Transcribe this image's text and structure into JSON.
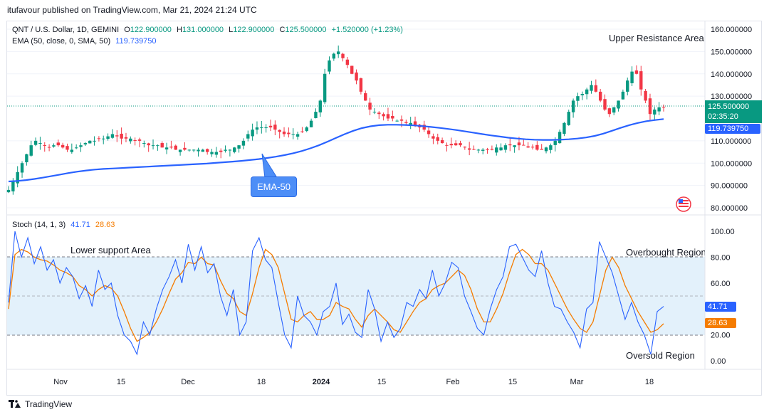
{
  "header": {
    "publisher": "itufavour published on TradingView.com, Mar 21, 2024 21:24 UTC"
  },
  "legend": {
    "symbol": "QNT / U.S. Dollar, 1D, GEMINI",
    "o_label": "O",
    "o_value": "122.900000",
    "h_label": "H",
    "h_value": "131.000000",
    "l_label": "L",
    "l_value": "122.900000",
    "c_label": "C",
    "c_value": "125.500000",
    "change": "+1.520000 (+1.23%)",
    "ema_label": "EMA (50, close, 0, SMA, 50)",
    "ema_value": "119.739750"
  },
  "stoch_legend": {
    "label": "Stoch (14, 1, 3)",
    "k_value": "41.71",
    "d_value": "28.63"
  },
  "annotations": {
    "upper_resistance": "Upper Resistance Area",
    "ema_callout": "EMA-50",
    "lower_support": "Lower support Area",
    "overbought": "Overbought Region",
    "oversold": "Oversold Region"
  },
  "price_tags": {
    "last_price": "125.500000",
    "countdown": "02:35:20",
    "ema": "119.739750",
    "stoch_k": "41.71",
    "stoch_d": "28.63"
  },
  "colors": {
    "up": "#089981",
    "down": "#f23645",
    "ema": "#2962ff",
    "stoch_k": "#2962ff",
    "stoch_d": "#f57c00",
    "band": "#e3f1fb"
  },
  "footer": {
    "brand": "TradingView"
  },
  "chart_data": [
    {
      "type": "candlestick",
      "title": "QNT / U.S. Dollar, 1D, GEMINI",
      "y_ticks": [
        "160.000000",
        "150.000000",
        "140.000000",
        "130.000000",
        "110.000000",
        "100.000000",
        "90.000000",
        "80.000000"
      ],
      "ylim": [
        78,
        162
      ],
      "x_ticks": [
        "Nov",
        "15",
        "Dec",
        "18",
        "2024",
        "15",
        "Feb",
        "15",
        "Mar",
        "18"
      ],
      "series": [
        {
          "name": "price_close_approx",
          "values": [
            88,
            92,
            96,
            100,
            104,
            108,
            110,
            109,
            108,
            107,
            108,
            108,
            107,
            106,
            106,
            107,
            108,
            109,
            110,
            110,
            111,
            111,
            112,
            113,
            112,
            111,
            111,
            111,
            110,
            110,
            109,
            108,
            108,
            108,
            107,
            107,
            107,
            106,
            106,
            106,
            106,
            106,
            106,
            106,
            105,
            105,
            105,
            105,
            106,
            106,
            107,
            108,
            110,
            113,
            115,
            116,
            116,
            116,
            116,
            115,
            114,
            113,
            113,
            113,
            113,
            114,
            116,
            119,
            123,
            128,
            140,
            146,
            149,
            150,
            147,
            144,
            140,
            137,
            132,
            128,
            124,
            123,
            122,
            121,
            120,
            120,
            119,
            119,
            118,
            118,
            117,
            116,
            115,
            113,
            111,
            110,
            109,
            108,
            108,
            108,
            108,
            107,
            106,
            106,
            106,
            106,
            106,
            106,
            107,
            107,
            108,
            108,
            108,
            108,
            108,
            107,
            107,
            106,
            106,
            107,
            108,
            110,
            114,
            118,
            123,
            128,
            130,
            131,
            133,
            135,
            132,
            128,
            124,
            122,
            125,
            128,
            132,
            137,
            141,
            140,
            133,
            128,
            122,
            124,
            125,
            125
          ]
        },
        {
          "name": "EMA (50, close, 0, SMA, 50)",
          "values": [
            91.8,
            92,
            92.4,
            92.9,
            93.5,
            94.2,
            94.9,
            95.6,
            96.2,
            96.7,
            97.1,
            97.4,
            97.6,
            97.8,
            98.0,
            98.2,
            98.4,
            98.6,
            98.8,
            99.0,
            99.2,
            99.4,
            99.6,
            99.8,
            100.1,
            100.4,
            100.7,
            101.0,
            101.4,
            101.8,
            102.3,
            102.9,
            103.6,
            104.4,
            105.4,
            106.6,
            108.0,
            109.6,
            111.3,
            113.0,
            114.5,
            115.7,
            116.5,
            117.0,
            117.2,
            117.2,
            117.1,
            116.9,
            116.6,
            116.2,
            115.8,
            115.3,
            114.8,
            114.2,
            113.6,
            113.0,
            112.4,
            111.9,
            111.4,
            111.0,
            110.7,
            110.5,
            110.4,
            110.4,
            110.5,
            110.7,
            111.0,
            111.5,
            112.2,
            113.2,
            114.5,
            115.8,
            117.0,
            118.0,
            118.8,
            119.3,
            119.74
          ]
        }
      ],
      "last_value": 125.5,
      "ema_last": 119.73975
    },
    {
      "type": "line",
      "title": "Stoch (14, 1, 3)",
      "y_ticks": [
        "100.00",
        "80.00",
        "60.00",
        "20.00",
        "0.00"
      ],
      "ylim": [
        0,
        100
      ],
      "band": [
        20,
        80
      ],
      "series": [
        {
          "name": "%K",
          "values": [
            45,
            100,
            80,
            95,
            75,
            88,
            70,
            78,
            60,
            72,
            65,
            48,
            58,
            42,
            70,
            55,
            60,
            35,
            20,
            15,
            5,
            30,
            20,
            40,
            55,
            65,
            78,
            60,
            90,
            70,
            88,
            68,
            75,
            50,
            35,
            55,
            20,
            30,
            85,
            95,
            78,
            72,
            45,
            20,
            10,
            50,
            35,
            30,
            20,
            38,
            42,
            60,
            28,
            36,
            22,
            18,
            55,
            40,
            15,
            30,
            18,
            25,
            45,
            42,
            55,
            48,
            70,
            50,
            60,
            76,
            72,
            50,
            38,
            25,
            20,
            40,
            55,
            65,
            88,
            90,
            80,
            70,
            65,
            85,
            60,
            42,
            40,
            30,
            22,
            10,
            40,
            45,
            92,
            80,
            68,
            50,
            32,
            45,
            30,
            20,
            5,
            38,
            42
          ]
        },
        {
          "name": "%D",
          "values": [
            40,
            82,
            86,
            84,
            80,
            78,
            77,
            74,
            70,
            68,
            65,
            58,
            55,
            50,
            55,
            58,
            56,
            50,
            38,
            25,
            15,
            18,
            22,
            30,
            40,
            52,
            63,
            68,
            76,
            75,
            80,
            75,
            74,
            62,
            52,
            48,
            38,
            35,
            52,
            72,
            86,
            82,
            72,
            52,
            32,
            30,
            35,
            38,
            32,
            32,
            35,
            45,
            42,
            40,
            32,
            26,
            35,
            40,
            35,
            30,
            24,
            22,
            30,
            38,
            45,
            48,
            55,
            58,
            60,
            65,
            70,
            66,
            55,
            40,
            30,
            30,
            40,
            52,
            68,
            82,
            86,
            82,
            75,
            75,
            70,
            60,
            50,
            40,
            32,
            25,
            22,
            30,
            50,
            70,
            80,
            72,
            58,
            48,
            38,
            30,
            22,
            24,
            28.63
          ]
        }
      ],
      "k_last": 41.71,
      "d_last": 28.63
    }
  ]
}
